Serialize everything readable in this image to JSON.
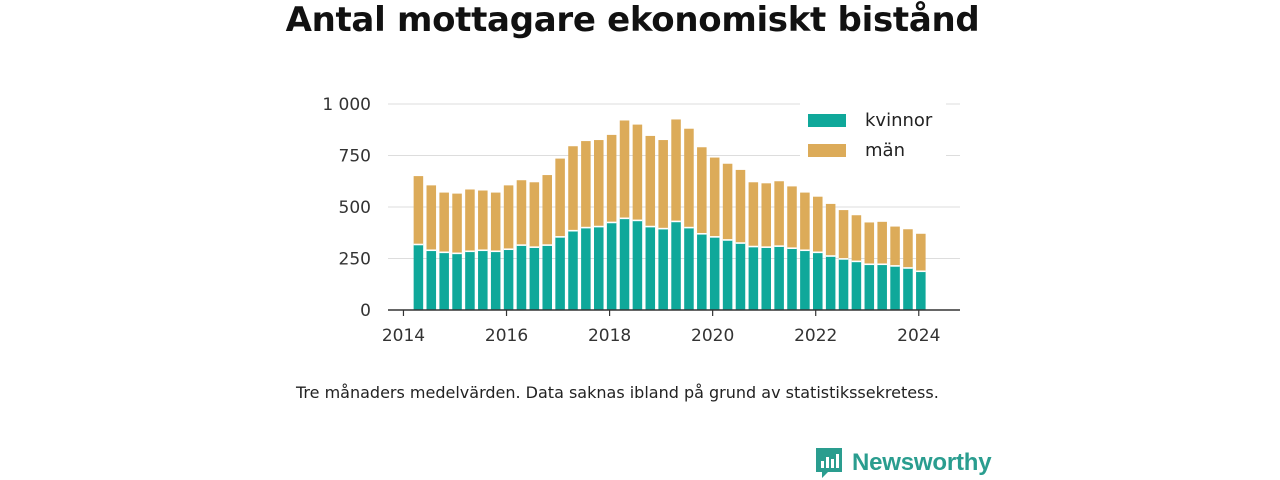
{
  "title": "Antal mottagare ekonomiskt bistånd",
  "note": "Tre månaders medelvärden. Data saknas ibland på grund av statistikssekretess.",
  "brand": {
    "name": "Newsworthy",
    "icon": "newsworthy-logo-icon",
    "color": "#2a9d8f"
  },
  "chart_data": {
    "type": "bar",
    "stacked": true,
    "grid": true,
    "legend_position": "top-right",
    "ylim": [
      0,
      1000
    ],
    "y_ticks": [
      0,
      250,
      500,
      750,
      1000
    ],
    "y_tick_labels": [
      "0",
      "250",
      "500",
      "750",
      "1 000"
    ],
    "x_ticks": [
      2014,
      2016,
      2018,
      2020,
      2022,
      2024
    ],
    "x_tick_labels": [
      "2014",
      "2016",
      "2018",
      "2020",
      "2022",
      "2024"
    ],
    "xlim": [
      2013.7,
      2024.8
    ],
    "x": [
      2014.29,
      2014.54,
      2014.79,
      2015.04,
      2015.29,
      2015.54,
      2015.79,
      2016.04,
      2016.29,
      2016.54,
      2016.79,
      2017.04,
      2017.29,
      2017.54,
      2017.79,
      2018.04,
      2018.29,
      2018.54,
      2018.79,
      2019.04,
      2019.29,
      2019.54,
      2019.79,
      2020.04,
      2020.29,
      2020.54,
      2020.79,
      2021.04,
      2021.29,
      2021.54,
      2021.79,
      2022.04,
      2022.29,
      2022.54,
      2022.79,
      2023.04,
      2023.29,
      2023.54,
      2023.79,
      2024.04
    ],
    "series": [
      {
        "name": "kvinnor",
        "color": "#0fa89a",
        "values": [
          318,
          290,
          280,
          275,
          285,
          290,
          285,
          295,
          315,
          305,
          315,
          355,
          385,
          400,
          405,
          425,
          445,
          435,
          405,
          395,
          430,
          400,
          370,
          355,
          340,
          325,
          308,
          305,
          310,
          300,
          290,
          280,
          262,
          248,
          236,
          222,
          222,
          214,
          204,
          188
        ]
      },
      {
        "name": "män",
        "color": "#dcab59",
        "values": [
          332,
          315,
          290,
          290,
          300,
          290,
          285,
          310,
          315,
          315,
          340,
          380,
          410,
          420,
          420,
          425,
          475,
          465,
          440,
          430,
          495,
          480,
          420,
          385,
          370,
          355,
          312,
          310,
          315,
          300,
          280,
          270,
          253,
          237,
          224,
          203,
          206,
          191,
          188,
          182
        ]
      }
    ]
  }
}
